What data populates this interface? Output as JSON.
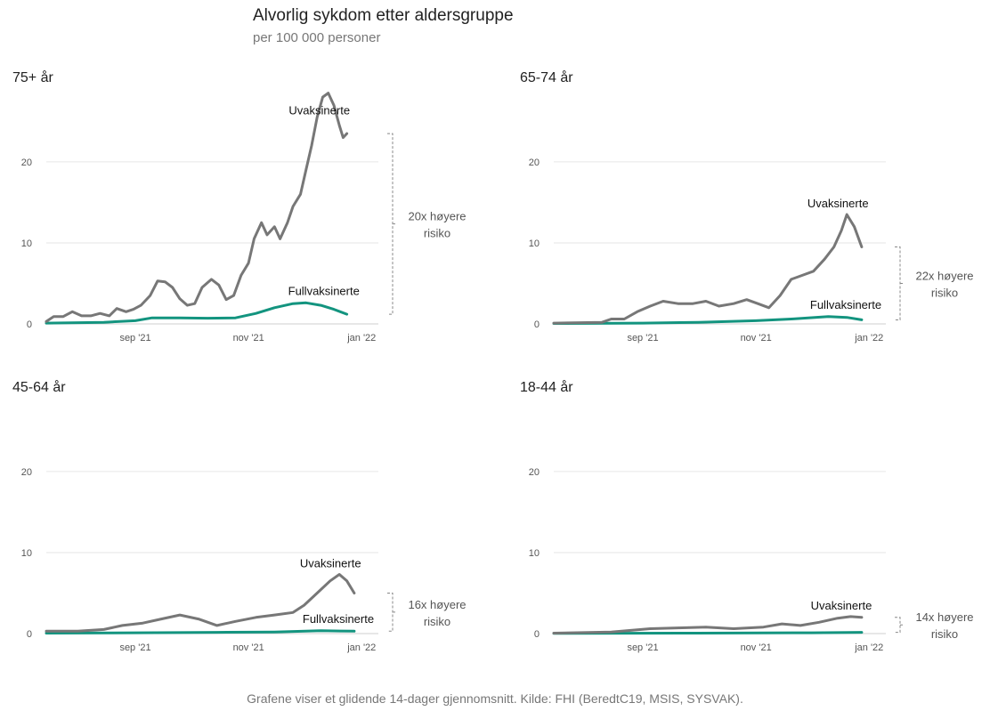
{
  "header": {
    "title": "Alvorlig sykdom etter aldersgruppe",
    "subtitle": "per 100 000 personer"
  },
  "footer": {
    "caption": "Grafene viser et glidende 14-dager gjennomsnitt. Kilde: FHI (BeredtC19, MSIS, SYSVAK)."
  },
  "colors": {
    "unvaccinated": "#777777",
    "vaccinated": "#13947f",
    "grid": "#e6e6e6",
    "bracket": "#888888"
  },
  "chart_data": [
    {
      "type": "line",
      "title": "75+ år",
      "ylim": [
        0,
        29
      ],
      "yticks": [
        0,
        10,
        20
      ],
      "xticks": [
        {
          "date": "2021-09-01",
          "label": "sep '21"
        },
        {
          "date": "2021-11-01",
          "label": "nov '21"
        },
        {
          "date": "2022-01-01",
          "label": "jan '22"
        }
      ],
      "xlim": [
        "2021-07-15",
        "2022-01-10"
      ],
      "grid": true,
      "risk_label": [
        "20x høyere",
        "risiko"
      ],
      "series": [
        {
          "name": "Uvaksinerte",
          "points": [
            [
              "2021-07-15",
              0.3
            ],
            [
              "2021-07-19",
              0.9
            ],
            [
              "2021-07-24",
              0.9
            ],
            [
              "2021-07-29",
              1.5
            ],
            [
              "2021-08-03",
              1.0
            ],
            [
              "2021-08-08",
              1.0
            ],
            [
              "2021-08-13",
              1.3
            ],
            [
              "2021-08-18",
              1.0
            ],
            [
              "2021-08-22",
              1.9
            ],
            [
              "2021-08-27",
              1.5
            ],
            [
              "2021-08-31",
              1.8
            ],
            [
              "2021-09-04",
              2.3
            ],
            [
              "2021-09-09",
              3.5
            ],
            [
              "2021-09-13",
              5.3
            ],
            [
              "2021-09-17",
              5.2
            ],
            [
              "2021-09-21",
              4.5
            ],
            [
              "2021-09-25",
              3.1
            ],
            [
              "2021-09-29",
              2.3
            ],
            [
              "2021-10-03",
              2.5
            ],
            [
              "2021-10-07",
              4.5
            ],
            [
              "2021-10-12",
              5.5
            ],
            [
              "2021-10-16",
              4.8
            ],
            [
              "2021-10-20",
              3.0
            ],
            [
              "2021-10-24",
              3.5
            ],
            [
              "2021-10-28",
              6.0
            ],
            [
              "2021-11-01",
              7.5
            ],
            [
              "2021-11-04",
              10.5
            ],
            [
              "2021-11-08",
              12.5
            ],
            [
              "2021-11-11",
              11.0
            ],
            [
              "2021-11-15",
              12.0
            ],
            [
              "2021-11-18",
              10.5
            ],
            [
              "2021-11-22",
              12.5
            ],
            [
              "2021-11-25",
              14.5
            ],
            [
              "2021-11-29",
              16.0
            ],
            [
              "2021-12-02",
              19.0
            ],
            [
              "2021-12-05",
              22.0
            ],
            [
              "2021-12-08",
              25.5
            ],
            [
              "2021-12-11",
              28.0
            ],
            [
              "2021-12-14",
              28.5
            ],
            [
              "2021-12-17",
              27.0
            ],
            [
              "2021-12-20",
              24.5
            ],
            [
              "2021-12-22",
              23.0
            ],
            [
              "2021-12-24",
              23.5
            ]
          ]
        },
        {
          "name": "Fullvaksinerte",
          "points": [
            [
              "2021-07-15",
              0.1
            ],
            [
              "2021-08-15",
              0.2
            ],
            [
              "2021-09-01",
              0.4
            ],
            [
              "2021-09-10",
              0.75
            ],
            [
              "2021-09-25",
              0.75
            ],
            [
              "2021-10-10",
              0.7
            ],
            [
              "2021-10-25",
              0.75
            ],
            [
              "2021-11-05",
              1.3
            ],
            [
              "2021-11-15",
              2.0
            ],
            [
              "2021-11-25",
              2.5
            ],
            [
              "2021-12-02",
              2.6
            ],
            [
              "2021-12-10",
              2.3
            ],
            [
              "2021-12-17",
              1.8
            ],
            [
              "2021-12-24",
              1.2
            ]
          ]
        }
      ]
    },
    {
      "type": "line",
      "title": "65-74 år",
      "ylim": [
        0,
        29
      ],
      "yticks": [
        0,
        10,
        20
      ],
      "xticks": [
        {
          "date": "2021-09-01",
          "label": "sep '21"
        },
        {
          "date": "2021-11-01",
          "label": "nov '21"
        },
        {
          "date": "2022-01-01",
          "label": "jan '22"
        }
      ],
      "xlim": [
        "2021-07-15",
        "2022-01-10"
      ],
      "grid": true,
      "risk_label": [
        "22x høyere",
        "risiko"
      ],
      "series": [
        {
          "name": "Uvaksinerte",
          "points": [
            [
              "2021-07-15",
              0.1
            ],
            [
              "2021-08-10",
              0.2
            ],
            [
              "2021-08-15",
              0.6
            ],
            [
              "2021-08-22",
              0.6
            ],
            [
              "2021-08-29",
              1.5
            ],
            [
              "2021-09-05",
              2.2
            ],
            [
              "2021-09-12",
              2.8
            ],
            [
              "2021-09-20",
              2.5
            ],
            [
              "2021-09-28",
              2.5
            ],
            [
              "2021-10-05",
              2.8
            ],
            [
              "2021-10-12",
              2.2
            ],
            [
              "2021-10-20",
              2.5
            ],
            [
              "2021-10-27",
              3.0
            ],
            [
              "2021-11-02",
              2.5
            ],
            [
              "2021-11-08",
              2.0
            ],
            [
              "2021-11-14",
              3.5
            ],
            [
              "2021-11-20",
              5.5
            ],
            [
              "2021-11-26",
              6.0
            ],
            [
              "2021-12-02",
              6.5
            ],
            [
              "2021-12-08",
              8.0
            ],
            [
              "2021-12-13",
              9.5
            ],
            [
              "2021-12-17",
              11.5
            ],
            [
              "2021-12-20",
              13.5
            ],
            [
              "2021-12-24",
              12.0
            ],
            [
              "2021-12-28",
              9.5
            ]
          ]
        },
        {
          "name": "Fullvaksinerte",
          "points": [
            [
              "2021-07-15",
              0.05
            ],
            [
              "2021-09-01",
              0.1
            ],
            [
              "2021-10-01",
              0.2
            ],
            [
              "2021-11-01",
              0.4
            ],
            [
              "2021-11-20",
              0.6
            ],
            [
              "2021-12-10",
              0.9
            ],
            [
              "2021-12-20",
              0.8
            ],
            [
              "2021-12-28",
              0.5
            ]
          ]
        }
      ]
    },
    {
      "type": "line",
      "title": "45-64 år",
      "ylim": [
        0,
        29
      ],
      "yticks": [
        0,
        10,
        20
      ],
      "xticks": [
        {
          "date": "2021-09-01",
          "label": "sep '21"
        },
        {
          "date": "2021-11-01",
          "label": "nov '21"
        },
        {
          "date": "2022-01-01",
          "label": "jan '22"
        }
      ],
      "xlim": [
        "2021-07-15",
        "2022-01-10"
      ],
      "grid": true,
      "risk_label": [
        "16x høyere",
        "risiko"
      ],
      "series": [
        {
          "name": "Uvaksinerte",
          "points": [
            [
              "2021-07-15",
              0.3
            ],
            [
              "2021-08-01",
              0.3
            ],
            [
              "2021-08-15",
              0.5
            ],
            [
              "2021-08-25",
              1.0
            ],
            [
              "2021-09-05",
              1.3
            ],
            [
              "2021-09-15",
              1.8
            ],
            [
              "2021-09-25",
              2.3
            ],
            [
              "2021-10-05",
              1.8
            ],
            [
              "2021-10-15",
              1.0
            ],
            [
              "2021-10-25",
              1.5
            ],
            [
              "2021-11-05",
              2.0
            ],
            [
              "2021-11-15",
              2.3
            ],
            [
              "2021-11-25",
              2.6
            ],
            [
              "2021-12-01",
              3.5
            ],
            [
              "2021-12-08",
              5.0
            ],
            [
              "2021-12-15",
              6.5
            ],
            [
              "2021-12-20",
              7.3
            ],
            [
              "2021-12-24",
              6.5
            ],
            [
              "2021-12-28",
              5.0
            ]
          ]
        },
        {
          "name": "Fullvaksinerte",
          "points": [
            [
              "2021-07-15",
              0.05
            ],
            [
              "2021-09-01",
              0.1
            ],
            [
              "2021-10-15",
              0.15
            ],
            [
              "2021-11-15",
              0.2
            ],
            [
              "2021-12-10",
              0.35
            ],
            [
              "2021-12-28",
              0.3
            ]
          ]
        }
      ]
    },
    {
      "type": "line",
      "title": "18-44 år",
      "ylim": [
        0,
        29
      ],
      "yticks": [
        0,
        10,
        20
      ],
      "xticks": [
        {
          "date": "2021-09-01",
          "label": "sep '21"
        },
        {
          "date": "2021-11-01",
          "label": "nov '21"
        },
        {
          "date": "2022-01-01",
          "label": "jan '22"
        }
      ],
      "xlim": [
        "2021-07-15",
        "2022-01-10"
      ],
      "grid": true,
      "risk_label": [
        "14x høyere",
        "risiko"
      ],
      "series": [
        {
          "name": "Uvaksinerte",
          "points": [
            [
              "2021-07-15",
              0.05
            ],
            [
              "2021-08-15",
              0.2
            ],
            [
              "2021-09-05",
              0.6
            ],
            [
              "2021-09-20",
              0.7
            ],
            [
              "2021-10-05",
              0.8
            ],
            [
              "2021-10-20",
              0.6
            ],
            [
              "2021-11-05",
              0.8
            ],
            [
              "2021-11-15",
              1.2
            ],
            [
              "2021-11-25",
              1.0
            ],
            [
              "2021-12-05",
              1.4
            ],
            [
              "2021-12-15",
              1.9
            ],
            [
              "2021-12-22",
              2.1
            ],
            [
              "2021-12-28",
              2.0
            ]
          ]
        },
        {
          "name": "Fullvaksinerte",
          "points": [
            [
              "2021-07-15",
              0.02
            ],
            [
              "2021-10-01",
              0.05
            ],
            [
              "2021-12-01",
              0.1
            ],
            [
              "2021-12-28",
              0.15
            ]
          ]
        }
      ]
    }
  ]
}
